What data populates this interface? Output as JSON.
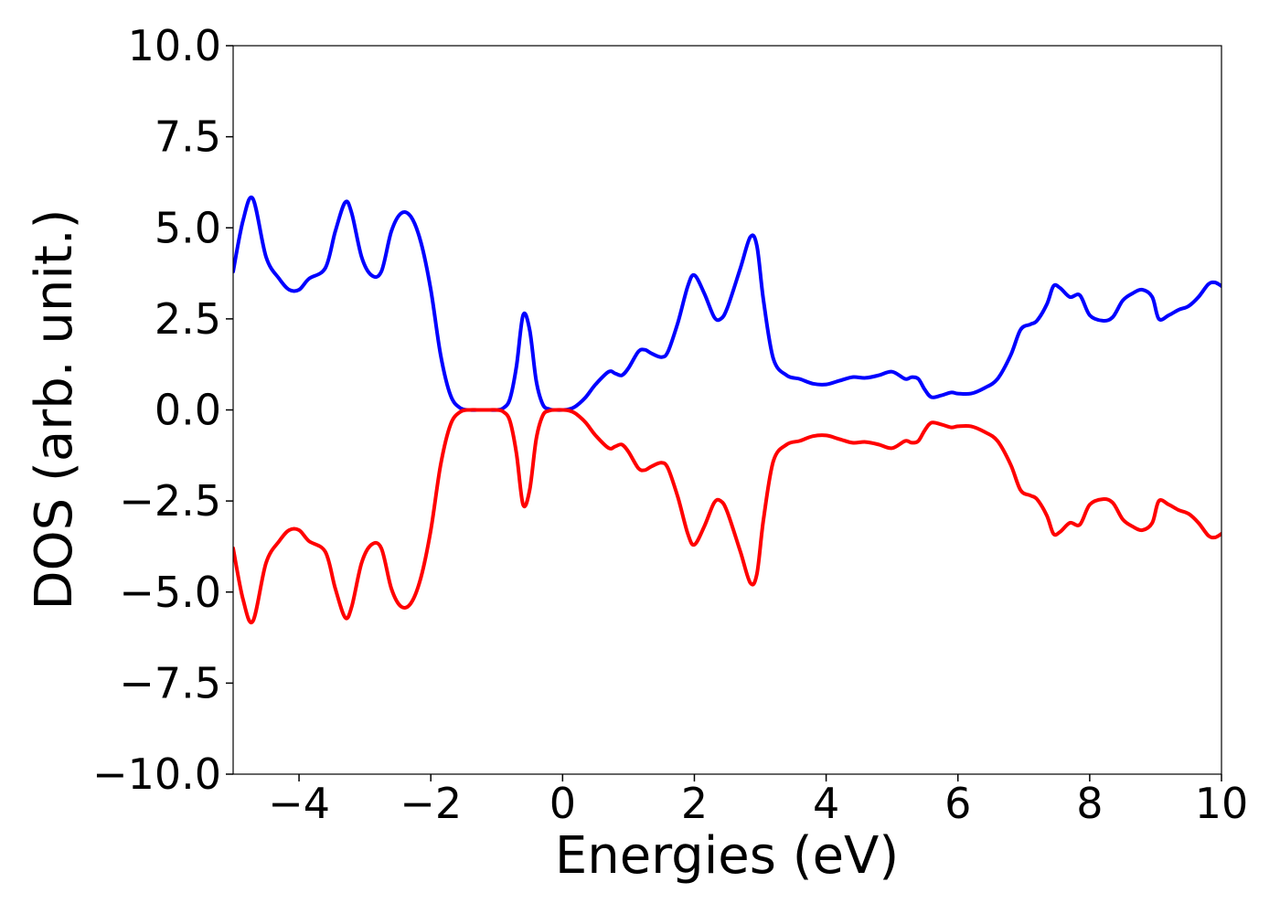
{
  "chart_data": {
    "type": "line",
    "title": "",
    "xlabel": "Energies (eV)",
    "ylabel": "DOS (arb. unit.)",
    "xlim": [
      -5,
      10
    ],
    "ylim": [
      -10,
      10
    ],
    "xticks": [
      -4,
      -2,
      0,
      2,
      4,
      6,
      8,
      10
    ],
    "xtick_labels": [
      "−4",
      "−2",
      "0",
      "2",
      "4",
      "6",
      "8",
      "10"
    ],
    "yticks": [
      10,
      7.5,
      5,
      2.5,
      0,
      -2.5,
      -5,
      -7.5,
      -10
    ],
    "ytick_labels": [
      "10.0",
      "7.5",
      "5.0",
      "2.5",
      "0.0",
      "−2.5",
      "−5.0",
      "−7.5",
      "−10.0"
    ],
    "grid": false,
    "legend": "none",
    "series": [
      {
        "color": "#0000ff",
        "x": [
          -5,
          -4.85,
          -4.7,
          -4.5,
          -4.3,
          -4.15,
          -4.0,
          -3.85,
          -3.6,
          -3.45,
          -3.3,
          -3.2,
          -3.05,
          -2.9,
          -2.75,
          -2.6,
          -2.45,
          -2.3,
          -2.15,
          -2.0,
          -1.85,
          -1.7,
          -1.55,
          -1.4,
          -1.3,
          -1.2,
          -1.1,
          -1.0,
          -0.9,
          -0.8,
          -0.7,
          -0.6,
          -0.5,
          -0.4,
          -0.3,
          -0.2,
          -0.1,
          0.0,
          0.1,
          0.2,
          0.35,
          0.5,
          0.7,
          0.8,
          0.9,
          1.0,
          1.15,
          1.25,
          1.35,
          1.5,
          1.6,
          1.75,
          1.9,
          2.0,
          2.15,
          2.3,
          2.4,
          2.5,
          2.7,
          2.85,
          2.95,
          3.05,
          3.2,
          3.4,
          3.6,
          3.8,
          4.0,
          4.2,
          4.4,
          4.6,
          4.8,
          5.0,
          5.2,
          5.3,
          5.4,
          5.5,
          5.6,
          5.75,
          5.9,
          6.0,
          6.2,
          6.4,
          6.6,
          6.8,
          6.95,
          7.1,
          7.2,
          7.35,
          7.45,
          7.55,
          7.7,
          7.85,
          8.0,
          8.2,
          8.35,
          8.5,
          8.65,
          8.8,
          8.95,
          9.05,
          9.2,
          9.35,
          9.5,
          9.65,
          9.8,
          9.9,
          10.0
        ],
        "values": [
          3.8,
          5.2,
          5.8,
          4.2,
          3.6,
          3.3,
          3.3,
          3.6,
          3.9,
          4.9,
          5.7,
          5.4,
          4.2,
          3.7,
          3.8,
          4.9,
          5.4,
          5.3,
          4.6,
          3.3,
          1.5,
          0.4,
          0.05,
          0.0,
          0.0,
          0.0,
          0.0,
          0.0,
          0.05,
          0.3,
          1.2,
          2.6,
          2.2,
          0.8,
          0.15,
          0.02,
          0.0,
          0.0,
          0.02,
          0.1,
          0.35,
          0.7,
          1.05,
          1.0,
          0.95,
          1.15,
          1.6,
          1.65,
          1.55,
          1.45,
          1.6,
          2.4,
          3.4,
          3.7,
          3.2,
          2.55,
          2.5,
          2.8,
          3.9,
          4.75,
          4.5,
          3.0,
          1.4,
          0.95,
          0.85,
          0.72,
          0.7,
          0.8,
          0.9,
          0.88,
          0.95,
          1.05,
          0.85,
          0.9,
          0.85,
          0.55,
          0.35,
          0.4,
          0.48,
          0.45,
          0.45,
          0.6,
          0.85,
          1.5,
          2.2,
          2.35,
          2.45,
          2.9,
          3.4,
          3.35,
          3.1,
          3.15,
          2.6,
          2.45,
          2.55,
          3.0,
          3.2,
          3.3,
          3.1,
          2.5,
          2.6,
          2.75,
          2.85,
          3.1,
          3.45,
          3.5,
          3.4
        ]
      },
      {
        "color": "#ff0000",
        "x": [
          -5,
          -4.85,
          -4.7,
          -4.5,
          -4.3,
          -4.15,
          -4.0,
          -3.85,
          -3.6,
          -3.45,
          -3.3,
          -3.2,
          -3.05,
          -2.9,
          -2.75,
          -2.6,
          -2.45,
          -2.3,
          -2.15,
          -2.0,
          -1.85,
          -1.7,
          -1.55,
          -1.4,
          -1.3,
          -1.2,
          -1.1,
          -1.0,
          -0.9,
          -0.8,
          -0.7,
          -0.6,
          -0.5,
          -0.4,
          -0.3,
          -0.2,
          -0.1,
          0.0,
          0.1,
          0.2,
          0.35,
          0.5,
          0.7,
          0.8,
          0.9,
          1.0,
          1.15,
          1.25,
          1.35,
          1.5,
          1.6,
          1.75,
          1.9,
          2.0,
          2.15,
          2.3,
          2.4,
          2.5,
          2.7,
          2.85,
          2.95,
          3.05,
          3.2,
          3.4,
          3.6,
          3.8,
          4.0,
          4.2,
          4.4,
          4.6,
          4.8,
          5.0,
          5.2,
          5.3,
          5.4,
          5.5,
          5.6,
          5.75,
          5.9,
          6.0,
          6.2,
          6.4,
          6.6,
          6.8,
          6.95,
          7.1,
          7.2,
          7.35,
          7.45,
          7.55,
          7.7,
          7.85,
          8.0,
          8.2,
          8.35,
          8.5,
          8.65,
          8.8,
          8.95,
          9.05,
          9.2,
          9.35,
          9.5,
          9.65,
          9.8,
          9.9,
          10.0
        ],
        "values": [
          -3.8,
          -5.2,
          -5.8,
          -4.2,
          -3.6,
          -3.3,
          -3.3,
          -3.6,
          -3.9,
          -4.9,
          -5.7,
          -5.4,
          -4.2,
          -3.7,
          -3.8,
          -4.9,
          -5.4,
          -5.3,
          -4.6,
          -3.3,
          -1.5,
          -0.4,
          -0.05,
          0.0,
          0.0,
          0.0,
          0.0,
          0.0,
          -0.05,
          -0.3,
          -1.2,
          -2.6,
          -2.2,
          -0.8,
          -0.15,
          -0.02,
          0.0,
          0.0,
          -0.02,
          -0.1,
          -0.35,
          -0.7,
          -1.05,
          -1.0,
          -0.95,
          -1.15,
          -1.6,
          -1.65,
          -1.55,
          -1.45,
          -1.6,
          -2.4,
          -3.4,
          -3.7,
          -3.2,
          -2.55,
          -2.5,
          -2.8,
          -3.9,
          -4.75,
          -4.5,
          -3.0,
          -1.4,
          -0.95,
          -0.85,
          -0.72,
          -0.7,
          -0.8,
          -0.9,
          -0.88,
          -0.95,
          -1.05,
          -0.85,
          -0.9,
          -0.85,
          -0.55,
          -0.35,
          -0.4,
          -0.48,
          -0.45,
          -0.45,
          -0.6,
          -0.85,
          -1.5,
          -2.2,
          -2.35,
          -2.45,
          -2.9,
          -3.4,
          -3.35,
          -3.1,
          -3.15,
          -2.6,
          -2.45,
          -2.55,
          -3.0,
          -3.2,
          -3.3,
          -3.1,
          -2.5,
          -2.6,
          -2.75,
          -2.85,
          -3.1,
          -3.45,
          -3.5,
          -3.4
        ]
      }
    ]
  }
}
